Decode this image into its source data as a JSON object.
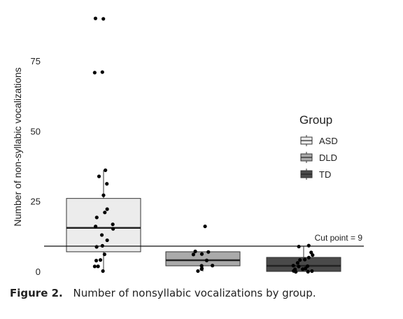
{
  "chart_data": {
    "type": "box",
    "ylabel": "Number of non-syllabic vocalizations",
    "xlabel": "",
    "ylim": [
      -2,
      91
    ],
    "yticks": [
      0,
      25,
      50,
      75
    ],
    "grid": false,
    "legend": {
      "title": "Group",
      "placement": "right",
      "entries": [
        "ASD",
        "DLD",
        "TD"
      ]
    },
    "colors": {
      "ASD": "#ececec",
      "DLD": "#aaaaaa",
      "TD": "#4a4a4a"
    },
    "series": [
      {
        "name": "ASD",
        "box": {
          "min": 0,
          "q1": 7,
          "median": 15.5,
          "q3": 26,
          "max": 36
        },
        "points": [
          90,
          90,
          71,
          71,
          36,
          34,
          31,
          27,
          22,
          21,
          19,
          17,
          16,
          15,
          13,
          11,
          9,
          9,
          6,
          4,
          4,
          2,
          2,
          0
        ]
      },
      {
        "name": "DLD",
        "box": {
          "min": 0,
          "q1": 2,
          "median": 4,
          "q3": 7,
          "max": 7
        },
        "points": [
          16,
          7,
          7,
          6,
          6,
          4,
          2,
          2,
          1,
          1,
          0
        ]
      },
      {
        "name": "TD",
        "box": {
          "min": 0,
          "q1": 0,
          "median": 2,
          "q3": 5,
          "max": 9
        },
        "points": [
          9,
          9,
          7,
          6,
          5,
          4,
          4,
          3,
          2,
          2,
          2,
          1,
          1,
          1,
          1,
          0,
          0,
          0,
          0
        ]
      }
    ],
    "reference_line": {
      "value": 9,
      "label": "Cut point = 9"
    }
  },
  "caption": {
    "label": "Figure 2.",
    "text": "Number of nonsyllabic vocalizations by group."
  }
}
